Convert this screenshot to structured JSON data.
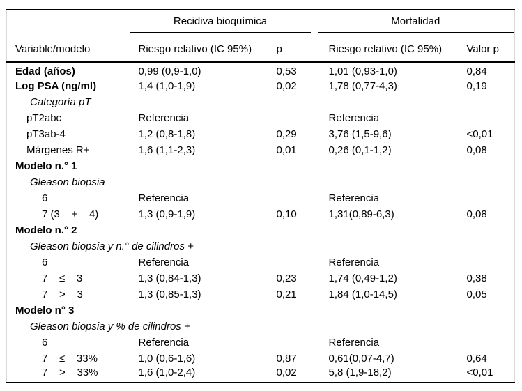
{
  "colors": {
    "text": "#000000",
    "rule": "#000000",
    "side_frame": "#d9d9d9",
    "background": "#ffffff"
  },
  "table": {
    "col_header": {
      "variable": "Variable/modelo",
      "group1": "Recidiva bioquímica",
      "group2": "Mortalidad",
      "rr1": "Riesgo relativo (IC 95%)",
      "p1": "p",
      "rr2": "Riesgo relativo (IC 95%)",
      "p2": "Valor p"
    },
    "rows": [
      {
        "label": "Edad (años)",
        "style": "bold",
        "indent": 0,
        "rr1": "0,99 (0,9-1,0)",
        "p1": "0,53",
        "rr2": "1,01 (0,93-1,0)",
        "p2": "0,84"
      },
      {
        "label": "Log PSA (ng/ml)",
        "style": "bold",
        "indent": 0,
        "rr1": "1,4 (1,0-1,9)",
        "p1": "0,02",
        "rr2": "1,78 (0,77-4,3)",
        "p2": "0,19"
      },
      {
        "label": "Categoría pT",
        "style": "italic",
        "indent": 2,
        "rr1": "",
        "p1": "",
        "rr2": "",
        "p2": ""
      },
      {
        "label": "pT2abc",
        "style": "plain",
        "indent": 1,
        "rr1": "Referencia",
        "p1": "",
        "rr2": "Referencia",
        "p2": ""
      },
      {
        "label": "pT3ab-4",
        "style": "plain",
        "indent": 1,
        "rr1": "1,2 (0,8-1,8)",
        "p1": "0,29",
        "rr2": "3,76 (1,5-9,6)",
        "p2": "<0,01"
      },
      {
        "label": "Márgenes R+",
        "style": "plain",
        "indent": 1,
        "rr1": "1,6 (1,1-2,3)",
        "p1": "0,01",
        "rr2": "0,26 (0,1-1,2)",
        "p2": "0,08"
      },
      {
        "label": "Modelo n.° 1",
        "style": "bold",
        "indent": 0,
        "rr1": "",
        "p1": "",
        "rr2": "",
        "p2": ""
      },
      {
        "label": "Gleason biopsia",
        "style": "italic",
        "indent": 2,
        "rr1": "",
        "p1": "",
        "rr2": "",
        "p2": ""
      },
      {
        "label": "6",
        "style": "plain",
        "indent": 3,
        "rr1": "Referencia",
        "p1": "",
        "rr2": "Referencia",
        "p2": ""
      },
      {
        "label": "7 (3    +    4)",
        "style": "plain",
        "indent": 3,
        "rr1": "1,3 (0,9-1,9)",
        "p1": "0,10",
        "rr2": "1,31(0,89-6,3)",
        "p2": "0,08"
      },
      {
        "label": "Modelo n.° 2",
        "style": "bold",
        "indent": 0,
        "rr1": "",
        "p1": "",
        "rr2": "",
        "p2": ""
      },
      {
        "label": "Gleason biopsia y n.° de cilindros +",
        "style": "italic",
        "indent": 2,
        "rr1": "",
        "p1": "",
        "rr2": "",
        "p2": ""
      },
      {
        "label": "6",
        "style": "plain",
        "indent": 3,
        "rr1": "Referencia",
        "p1": "",
        "rr2": "Referencia",
        "p2": ""
      },
      {
        "label": "7    ≤    3",
        "style": "plain",
        "indent": 3,
        "rr1": "1,3 (0,84-1,3)",
        "p1": "0,23",
        "rr2": "1,74 (0,49-1,2)",
        "p2": "0,38"
      },
      {
        "label": "7    >    3",
        "style": "plain",
        "indent": 3,
        "rr1": "1,3 (0,85-1,3)",
        "p1": "0,21",
        "rr2": "1,84 (1,0-14,5)",
        "p2": "0,05"
      },
      {
        "label": "Modelo n° 3",
        "style": "bold",
        "indent": 0,
        "rr1": "",
        "p1": "",
        "rr2": "",
        "p2": ""
      },
      {
        "label": "Gleason biopsia y % de cilindros +",
        "style": "italic",
        "indent": 2,
        "rr1": "",
        "p1": "",
        "rr2": "",
        "p2": ""
      },
      {
        "label": "6",
        "style": "plain",
        "indent": 3,
        "rr1": "Referencia",
        "p1": "",
        "rr2": "Referencia",
        "p2": ""
      },
      {
        "label": "7    ≤    33%",
        "style": "plain",
        "indent": 3,
        "rr1": "1,0 (0,6-1,6)",
        "p1": "0,87",
        "rr2": "0,61(0,07-4,7)",
        "p2": "0,64"
      },
      {
        "label": "7    >    33%",
        "style": "plain",
        "indent": 3,
        "rr1": "1,6 (1,0-2,4)",
        "p1": "0,02",
        "rr2": "5,8 (1,9-18,2)",
        "p2": "<0,01"
      }
    ]
  }
}
